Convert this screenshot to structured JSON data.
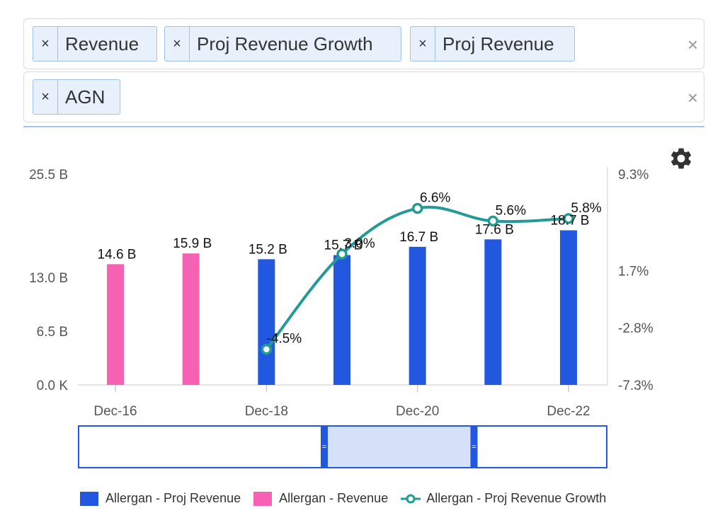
{
  "filters": {
    "row1": {
      "tags": [
        {
          "remove": "×",
          "label": "Revenue"
        },
        {
          "remove": "×",
          "label": "Proj Revenue Growth"
        },
        {
          "remove": "×",
          "label": "Proj Revenue"
        }
      ],
      "clear": "×"
    },
    "row2": {
      "tags": [
        {
          "remove": "×",
          "label": "AGN"
        }
      ],
      "clear": "×"
    }
  },
  "settings_icon": "gear-icon",
  "colors": {
    "proj_revenue": "#2258df",
    "revenue": "#f562b4",
    "growth": "#229b97",
    "navigator_fill": "#d4e1f8",
    "navigator_border": "#2258df"
  },
  "chart_data": {
    "type": "bar",
    "x_ticks": [
      "Dec-16",
      "Dec-18",
      "Dec-20",
      "Dec-22"
    ],
    "y_left": {
      "ticks": [
        "0.0 K",
        "6.5 B",
        "13.0 B",
        "25.5 B"
      ],
      "tick_values": [
        0,
        6.5,
        13.0,
        25.5
      ],
      "range": [
        0,
        25.5
      ],
      "unit": "B"
    },
    "y_right": {
      "ticks": [
        "-7.3%",
        "-2.8%",
        "1.7%",
        "9.3%"
      ],
      "tick_values": [
        -7.3,
        -2.8,
        1.7,
        9.3
      ],
      "range": [
        -7.3,
        9.3
      ],
      "unit": "%"
    },
    "series": [
      {
        "name": "Allergan - Revenue",
        "type": "bar",
        "axis": "left",
        "x": [
          2016,
          2017
        ],
        "values": [
          14.6,
          15.9
        ],
        "labels": [
          "14.6 B",
          "15.9 B"
        ]
      },
      {
        "name": "Allergan - Proj Revenue",
        "type": "bar",
        "axis": "left",
        "x": [
          2018,
          2019,
          2020,
          2021,
          2022
        ],
        "values": [
          15.2,
          15.7,
          16.7,
          17.6,
          18.7
        ],
        "labels": [
          "15.2 B",
          "15.7 B",
          "16.7 B",
          "17.6 B",
          "18.7 B"
        ]
      },
      {
        "name": "Allergan - Proj Revenue Growth",
        "type": "line",
        "axis": "right",
        "x": [
          2018,
          2019,
          2020,
          2021,
          2022
        ],
        "values": [
          -4.5,
          3.0,
          6.6,
          5.6,
          5.8
        ],
        "labels": [
          "-4.5%",
          "3.0%",
          "6.6%",
          "5.6%",
          "5.8%"
        ]
      }
    ],
    "legend_position": "bottom",
    "grid": false
  },
  "navigator": {
    "selected_range": [
      0.5,
      0.75
    ],
    "handle_glyph": "="
  }
}
